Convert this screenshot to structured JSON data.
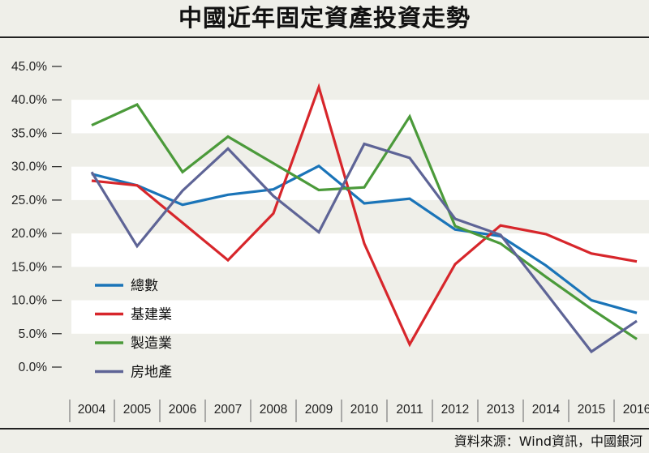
{
  "title": "中國近年固定資產投資走勢",
  "source": "資料來源：Wind資訊，中國銀河",
  "chart_data": {
    "type": "line",
    "title": "中國近年固定資產投資走勢",
    "x": [
      "2004",
      "2005",
      "2006",
      "2007",
      "2008",
      "2009",
      "2010",
      "2011",
      "2012",
      "2013",
      "2014",
      "2015",
      "2016"
    ],
    "yticks": [
      "0.0%",
      "5.0%",
      "10.0%",
      "15.0%",
      "20.0%",
      "25.0%",
      "30.0%",
      "35.0%",
      "40.0%",
      "45.0%"
    ],
    "ylim": [
      0,
      45
    ],
    "grid": "alternating horizontal bands",
    "legend_position": "left-bottom",
    "series": [
      {
        "name": "總數",
        "color": "#1a74b8",
        "values": [
          28.9,
          27.2,
          24.3,
          25.8,
          26.6,
          30.1,
          24.5,
          25.2,
          20.6,
          19.6,
          15.2,
          10.0,
          8.1
        ]
      },
      {
        "name": "基建業",
        "color": "#d7262b",
        "values": [
          27.9,
          27.2,
          21.6,
          16.0,
          23.0,
          41.9,
          18.5,
          3.4,
          15.4,
          21.2,
          19.9,
          17.0,
          15.8
        ]
      },
      {
        "name": "製造業",
        "color": "#4b9a3a",
        "values": [
          36.2,
          39.3,
          29.2,
          34.5,
          30.5,
          26.5,
          26.9,
          37.5,
          21.1,
          18.5,
          13.5,
          8.7,
          4.2
        ]
      },
      {
        "name": "房地產",
        "color": "#5e6496",
        "values": [
          29.2,
          18.1,
          26.4,
          32.7,
          25.6,
          20.2,
          33.4,
          31.3,
          22.2,
          19.8,
          11.1,
          2.3,
          6.9
        ]
      }
    ]
  }
}
